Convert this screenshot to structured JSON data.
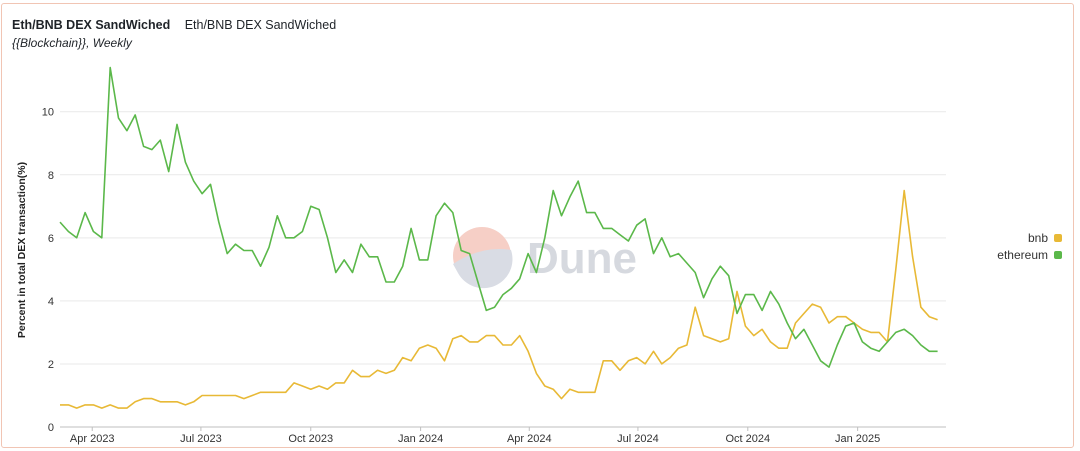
{
  "header": {
    "title": "Eth/BNB DEX SandWiched",
    "query_name": "Eth/BNB DEX SandWiched",
    "subtitle": "{{Blockchain}}, Weekly"
  },
  "watermark": {
    "text": "Dune"
  },
  "colors": {
    "ethereum": "#5bb84a",
    "bnb": "#e8b936",
    "grid": "#e9e9e9"
  },
  "chart_data": {
    "type": "line",
    "ylabel": "Percent in total DEX transaction(%)",
    "ylim": [
      0,
      11.8
    ],
    "yticks": [
      0,
      2,
      4,
      6,
      8,
      10
    ],
    "xlim": [
      "2023-03-05",
      "2025-03-16"
    ],
    "xticks": [
      {
        "label": "Apr 2023",
        "date": "2023-04-01"
      },
      {
        "label": "Jul 2023",
        "date": "2023-07-01"
      },
      {
        "label": "Oct 2023",
        "date": "2023-10-01"
      },
      {
        "label": "Jan 2024",
        "date": "2024-01-01"
      },
      {
        "label": "Apr 2024",
        "date": "2024-04-01"
      },
      {
        "label": "Jul 2024",
        "date": "2024-07-01"
      },
      {
        "label": "Oct 2024",
        "date": "2024-10-01"
      },
      {
        "label": "Jan 2025",
        "date": "2025-01-01"
      }
    ],
    "grid": true,
    "legend_position": "right",
    "x": [
      "2023-03-05",
      "2023-03-12",
      "2023-03-19",
      "2023-03-26",
      "2023-04-02",
      "2023-04-09",
      "2023-04-16",
      "2023-04-23",
      "2023-04-30",
      "2023-05-07",
      "2023-05-14",
      "2023-05-21",
      "2023-05-28",
      "2023-06-04",
      "2023-06-11",
      "2023-06-18",
      "2023-06-25",
      "2023-07-02",
      "2023-07-09",
      "2023-07-16",
      "2023-07-23",
      "2023-07-30",
      "2023-08-06",
      "2023-08-13",
      "2023-08-20",
      "2023-08-27",
      "2023-09-03",
      "2023-09-10",
      "2023-09-17",
      "2023-09-24",
      "2023-10-01",
      "2023-10-08",
      "2023-10-15",
      "2023-10-22",
      "2023-10-29",
      "2023-11-05",
      "2023-11-12",
      "2023-11-19",
      "2023-11-26",
      "2023-12-03",
      "2023-12-10",
      "2023-12-17",
      "2023-12-24",
      "2023-12-31",
      "2024-01-07",
      "2024-01-14",
      "2024-01-21",
      "2024-01-28",
      "2024-02-04",
      "2024-02-11",
      "2024-02-18",
      "2024-02-25",
      "2024-03-03",
      "2024-03-10",
      "2024-03-17",
      "2024-03-24",
      "2024-03-31",
      "2024-04-07",
      "2024-04-14",
      "2024-04-21",
      "2024-04-28",
      "2024-05-05",
      "2024-05-12",
      "2024-05-19",
      "2024-05-26",
      "2024-06-02",
      "2024-06-09",
      "2024-06-16",
      "2024-06-23",
      "2024-06-30",
      "2024-07-07",
      "2024-07-14",
      "2024-07-21",
      "2024-07-28",
      "2024-08-04",
      "2024-08-11",
      "2024-08-18",
      "2024-08-25",
      "2024-09-01",
      "2024-09-08",
      "2024-09-15",
      "2024-09-22",
      "2024-09-29",
      "2024-10-06",
      "2024-10-13",
      "2024-10-20",
      "2024-10-27",
      "2024-11-03",
      "2024-11-10",
      "2024-11-17",
      "2024-11-24",
      "2024-12-01",
      "2024-12-08",
      "2024-12-15",
      "2024-12-22",
      "2024-12-29",
      "2025-01-05",
      "2025-01-12",
      "2025-01-19",
      "2025-01-26",
      "2025-02-02",
      "2025-02-09",
      "2025-02-16",
      "2025-02-23",
      "2025-03-02",
      "2025-03-09"
    ],
    "series": [
      {
        "name": "bnb",
        "color": "#e8b936",
        "values": [
          0.7,
          0.7,
          0.6,
          0.7,
          0.7,
          0.6,
          0.7,
          0.6,
          0.6,
          0.8,
          0.9,
          0.9,
          0.8,
          0.8,
          0.8,
          0.7,
          0.8,
          1.0,
          1.0,
          1.0,
          1.0,
          1.0,
          0.9,
          1.0,
          1.1,
          1.1,
          1.1,
          1.1,
          1.4,
          1.3,
          1.2,
          1.3,
          1.2,
          1.4,
          1.4,
          1.8,
          1.6,
          1.6,
          1.8,
          1.7,
          1.8,
          2.2,
          2.1,
          2.5,
          2.6,
          2.5,
          2.1,
          2.8,
          2.9,
          2.7,
          2.7,
          2.9,
          2.9,
          2.6,
          2.6,
          2.9,
          2.4,
          1.7,
          1.3,
          1.2,
          0.9,
          1.2,
          1.1,
          1.1,
          1.1,
          2.1,
          2.1,
          1.8,
          2.1,
          2.2,
          2.0,
          2.4,
          2.0,
          2.2,
          2.5,
          2.6,
          3.8,
          2.9,
          2.8,
          2.7,
          2.8,
          4.3,
          3.2,
          2.9,
          3.1,
          2.7,
          2.5,
          2.5,
          3.3,
          3.6,
          3.9,
          3.8,
          3.3,
          3.5,
          3.5,
          3.3,
          3.1,
          3.0,
          3.0,
          2.7,
          5.0,
          7.5,
          5.4,
          3.8,
          3.5,
          3.4
        ]
      },
      {
        "name": "ethereum",
        "color": "#5bb84a",
        "values": [
          6.5,
          6.2,
          6.0,
          6.8,
          6.2,
          6.0,
          11.4,
          9.8,
          9.4,
          9.9,
          8.9,
          8.8,
          9.1,
          8.1,
          9.6,
          8.4,
          7.8,
          7.4,
          7.7,
          6.5,
          5.5,
          5.8,
          5.6,
          5.6,
          5.1,
          5.7,
          6.7,
          6.0,
          6.0,
          6.2,
          7.0,
          6.9,
          6.0,
          4.9,
          5.3,
          4.9,
          5.8,
          5.4,
          5.4,
          4.6,
          4.6,
          5.1,
          6.3,
          5.3,
          5.3,
          6.7,
          7.1,
          6.8,
          5.6,
          5.5,
          4.6,
          3.7,
          3.8,
          4.2,
          4.4,
          4.7,
          5.5,
          4.9,
          6.0,
          7.5,
          6.7,
          7.3,
          7.8,
          6.8,
          6.8,
          6.3,
          6.3,
          6.1,
          5.9,
          6.4,
          6.6,
          5.5,
          6.0,
          5.4,
          5.5,
          5.2,
          4.9,
          4.1,
          4.7,
          5.1,
          4.8,
          3.6,
          4.2,
          4.2,
          3.7,
          4.3,
          3.9,
          3.3,
          2.8,
          3.1,
          2.6,
          2.1,
          1.9,
          2.6,
          3.2,
          3.3,
          2.7,
          2.5,
          2.4,
          2.7,
          3.0,
          3.1,
          2.9,
          2.6,
          2.4,
          2.4
        ]
      }
    ]
  }
}
